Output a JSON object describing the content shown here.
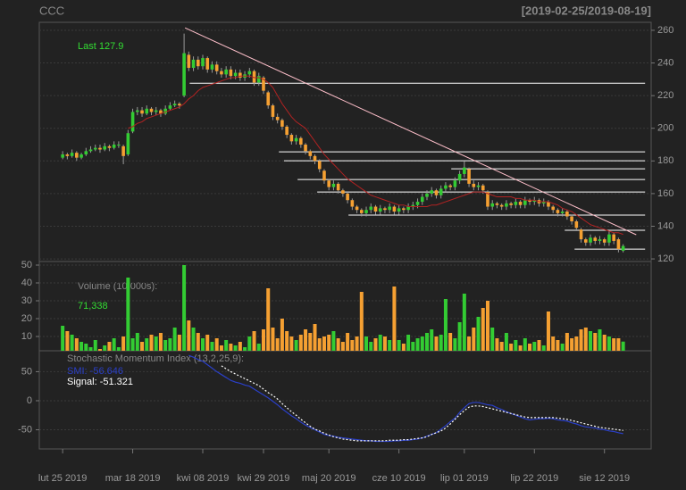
{
  "chart_data": {
    "type": "candlestick",
    "title": "CCC",
    "subtitle": "[2019-02-25/2019-08-19]",
    "last_label": "Last 127.9",
    "xlim": [
      -5,
      126
    ],
    "xticks": [
      {
        "value": 0,
        "label": "lut 25 2019"
      },
      {
        "value": 15,
        "label": "mar 18 2019"
      },
      {
        "value": 30,
        "label": "kwi 08 2019"
      },
      {
        "value": 43,
        "label": "kwi 29 2019"
      },
      {
        "value": 57,
        "label": "maj 20 2019"
      },
      {
        "value": 72,
        "label": "cze 10 2019"
      },
      {
        "value": 86,
        "label": "lip 01 2019"
      },
      {
        "value": 101,
        "label": "lip 22 2019"
      },
      {
        "value": 116,
        "label": "sie 12 2019"
      }
    ],
    "ylim": [
      118.4,
      264.9
    ],
    "yticks": [
      120,
      140,
      160,
      180,
      200,
      220,
      240,
      260
    ],
    "grid": true,
    "up_color": "#33cc33",
    "down_color": "#f5a032",
    "wick_color": "#999999",
    "open": [
      182,
      184,
      183,
      185,
      182,
      184,
      186,
      187,
      188,
      187,
      189,
      188,
      190,
      189,
      184,
      198,
      210,
      211,
      209,
      212,
      210,
      211,
      209,
      212,
      214,
      215,
      220,
      245,
      237,
      242,
      238,
      243,
      236,
      239,
      235,
      233,
      236,
      232,
      234,
      231,
      233,
      235,
      228,
      231,
      222,
      214,
      207,
      205,
      201,
      196,
      192,
      194,
      190,
      186,
      183,
      180,
      174,
      168,
      164,
      166,
      162,
      160,
      156,
      152,
      150,
      148,
      150,
      152,
      149,
      151,
      150,
      152,
      149,
      151,
      150,
      152,
      153,
      155,
      158,
      160,
      162,
      159,
      163,
      165,
      164,
      168,
      172,
      175,
      166,
      164,
      165,
      161,
      152,
      154,
      153,
      152,
      154,
      153,
      155,
      153,
      156,
      155,
      156,
      154,
      155,
      152,
      150,
      148,
      149,
      146,
      143,
      138,
      132,
      130,
      133,
      131,
      132,
      130,
      135,
      132,
      125
    ],
    "high": [
      186,
      185,
      187,
      186,
      185,
      188,
      189,
      190,
      190,
      191,
      190,
      192,
      192,
      190,
      199,
      212,
      213,
      213,
      214,
      213,
      213,
      212,
      214,
      216,
      217,
      216,
      258,
      247,
      244,
      244,
      245,
      244,
      241,
      241,
      237,
      238,
      238,
      236,
      236,
      235,
      237,
      236,
      234,
      232,
      223,
      215,
      209,
      206,
      202,
      197,
      196,
      195,
      191,
      187,
      184,
      181,
      175,
      169,
      168,
      167,
      163,
      161,
      157,
      153,
      151,
      152,
      154,
      153,
      153,
      152,
      154,
      153,
      153,
      152,
      154,
      155,
      157,
      160,
      162,
      164,
      163,
      165,
      167,
      166,
      170,
      174,
      180,
      176,
      168,
      167,
      166,
      162,
      156,
      155,
      154,
      156,
      155,
      157,
      156,
      158,
      157,
      158,
      157,
      157,
      156,
      153,
      151,
      151,
      150,
      147,
      144,
      139,
      133,
      135,
      134,
      134,
      133,
      137,
      136,
      133,
      129
    ],
    "low": [
      181,
      181,
      182,
      180,
      181,
      183,
      185,
      186,
      185,
      186,
      186,
      187,
      188,
      178,
      183,
      197,
      208,
      207,
      208,
      208,
      208,
      207,
      208,
      211,
      213,
      212,
      219,
      235,
      235,
      236,
      236,
      234,
      234,
      233,
      231,
      231,
      230,
      230,
      229,
      229,
      231,
      226,
      226,
      221,
      212,
      205,
      203,
      199,
      194,
      190,
      190,
      188,
      184,
      181,
      178,
      173,
      166,
      162,
      162,
      160,
      158,
      154,
      150,
      148,
      146,
      146,
      148,
      147,
      147,
      148,
      148,
      147,
      147,
      148,
      148,
      150,
      151,
      153,
      156,
      158,
      157,
      157,
      161,
      162,
      162,
      166,
      170,
      164,
      162,
      162,
      160,
      150,
      150,
      151,
      150,
      150,
      151,
      151,
      151,
      151,
      153,
      153,
      152,
      152,
      150,
      148,
      146,
      146,
      144,
      141,
      137,
      130,
      128,
      128,
      129,
      129,
      128,
      128,
      129,
      124,
      124
    ],
    "close": [
      184,
      183,
      185,
      182,
      184,
      186,
      187,
      188,
      187,
      189,
      188,
      190,
      190,
      183,
      197,
      210,
      211,
      209,
      212,
      210,
      211,
      209,
      212,
      214,
      215,
      214,
      246,
      237,
      242,
      238,
      243,
      236,
      239,
      235,
      233,
      236,
      232,
      234,
      231,
      233,
      235,
      228,
      232,
      223,
      214,
      207,
      205,
      201,
      196,
      192,
      194,
      190,
      186,
      183,
      180,
      175,
      168,
      164,
      166,
      162,
      160,
      156,
      152,
      150,
      148,
      150,
      152,
      149,
      151,
      150,
      152,
      149,
      151,
      150,
      152,
      153,
      155,
      158,
      160,
      162,
      159,
      163,
      165,
      164,
      168,
      172,
      176,
      166,
      164,
      165,
      162,
      152,
      154,
      153,
      152,
      154,
      153,
      155,
      153,
      156,
      155,
      156,
      154,
      155,
      152,
      150,
      148,
      149,
      146,
      143,
      139,
      132,
      130,
      133,
      131,
      132,
      130,
      135,
      131,
      126,
      127.9
    ],
    "overlay": {
      "color": "#b22222",
      "values": [
        null,
        null,
        null,
        null,
        null,
        null,
        null,
        null,
        null,
        null,
        null,
        null,
        null,
        null,
        200,
        201,
        203,
        204,
        206,
        207,
        208,
        209,
        210,
        211,
        212,
        213,
        215,
        218,
        220,
        223,
        225,
        226,
        227,
        228,
        229,
        230,
        231,
        231,
        232,
        232,
        232,
        231,
        231,
        230,
        228,
        225,
        220,
        215,
        211,
        207,
        204,
        202,
        200,
        196,
        192,
        188,
        184,
        181,
        178,
        175,
        172,
        169,
        167,
        165,
        163,
        161,
        159,
        158,
        157,
        156,
        155,
        154,
        153,
        153,
        152,
        152,
        152,
        152,
        152,
        153,
        153,
        154,
        155,
        156,
        157,
        158,
        159,
        160,
        161,
        161,
        161,
        160,
        159,
        158,
        158,
        158,
        158,
        157,
        157,
        156,
        156,
        156,
        155,
        155,
        155,
        154,
        153,
        151,
        150,
        149,
        147,
        145,
        143,
        141,
        140,
        139,
        138,
        137,
        136,
        136,
        135
      ]
    },
    "trendline": {
      "color": "#ffc0cb",
      "x": [
        26.2,
        122.8
      ],
      "y": [
        261.5,
        134.8
      ]
    },
    "level_color": "#ffffff",
    "levels": [
      {
        "value": 227.6,
        "from": 27.2,
        "to": 124.7
      },
      {
        "value": 185.6,
        "from": 46.3,
        "to": 124.7
      },
      {
        "value": 180.1,
        "from": 47.4,
        "to": 124.7
      },
      {
        "value": 175.2,
        "from": 83.2,
        "to": 124.7
      },
      {
        "value": 168.6,
        "from": 50.3,
        "to": 124.7
      },
      {
        "value": 161,
        "from": 54.5,
        "to": 124.7
      },
      {
        "value": 146.8,
        "from": 61.2,
        "to": 124.7
      },
      {
        "value": 137.5,
        "from": 107.5,
        "to": 124.7
      },
      {
        "value": 126,
        "from": 109.6,
        "to": 124.7
      }
    ],
    "volume": {
      "label": "Volume (10,000s):",
      "last_label": "71,338",
      "ylim": [
        2,
        52
      ],
      "yticks": [
        10,
        20,
        30,
        40,
        50
      ],
      "values": [
        16,
        13,
        11,
        9,
        7,
        6,
        4,
        8,
        3,
        5,
        7,
        9,
        4,
        10,
        43,
        9,
        12,
        7,
        9,
        11,
        10,
        12,
        8,
        9,
        15,
        11,
        50,
        19,
        15,
        12,
        9,
        11,
        7,
        9,
        5,
        8,
        6,
        5,
        7,
        4,
        10,
        13,
        6,
        14,
        37,
        15,
        9,
        20,
        13,
        10,
        8,
        11,
        14,
        12,
        17,
        9,
        10,
        11,
        13,
        9,
        7,
        12,
        8,
        10,
        35,
        10,
        7,
        9,
        11,
        10,
        8,
        38,
        8,
        6,
        11,
        7,
        9,
        10,
        12,
        14,
        10,
        11,
        31,
        12,
        9,
        18,
        34,
        10,
        15,
        21,
        26,
        30,
        15,
        9,
        7,
        12,
        6,
        8,
        5,
        9,
        6,
        7,
        8,
        5,
        24,
        10,
        8,
        6,
        12,
        9,
        10,
        14,
        15,
        13,
        12,
        14,
        11,
        10,
        9,
        9,
        7.1338
      ]
    },
    "smi": {
      "title": "Stochastic Momentum Index (13,2,25,9):",
      "ylim": [
        -83,
        86
      ],
      "yticks": [
        -50,
        0,
        50
      ],
      "series": [
        {
          "name": "SMI: -56.646",
          "color": "#2a3fc8",
          "values": [
            null,
            null,
            null,
            null,
            null,
            null,
            null,
            null,
            null,
            null,
            null,
            null,
            null,
            null,
            null,
            null,
            null,
            null,
            null,
            null,
            null,
            null,
            null,
            null,
            null,
            null,
            null,
            78,
            75,
            71,
            68,
            62,
            56,
            50,
            45,
            40,
            35,
            32,
            30,
            27,
            25,
            20,
            15,
            10,
            5,
            -1,
            -7,
            -14,
            -20,
            -26,
            -31,
            -37,
            -42,
            -46,
            -50,
            -54,
            -58,
            -60,
            -61,
            -63,
            -64,
            -65,
            -66,
            -67,
            -68,
            -69,
            -69,
            -70,
            -70,
            -70,
            -70,
            -69,
            -69,
            -68,
            -68,
            -67,
            -66,
            -64,
            -61,
            -58,
            -55,
            -49,
            -43,
            -36,
            -30,
            -20,
            -12,
            -5,
            -3,
            -3,
            -5,
            -7,
            -8,
            -12,
            -15,
            -19,
            -22,
            -25,
            -28,
            -31,
            -33,
            -32,
            -31,
            -31,
            -30,
            -31,
            -33,
            -34,
            -35,
            -38,
            -40,
            -43,
            -45,
            -46,
            -47,
            -49,
            -50,
            -52,
            -53,
            -55,
            -56.646
          ]
        },
        {
          "name": "Signal: -51.321",
          "color": "#ffffff",
          "dashed": true,
          "values": [
            null,
            null,
            null,
            null,
            null,
            null,
            null,
            null,
            null,
            null,
            null,
            null,
            null,
            null,
            null,
            null,
            null,
            null,
            null,
            null,
            null,
            null,
            null,
            null,
            null,
            null,
            null,
            null,
            null,
            null,
            null,
            null,
            null,
            null,
            60,
            55,
            50,
            46,
            42,
            38,
            34,
            30,
            26,
            20,
            14,
            9,
            3,
            -5,
            -12,
            -19,
            -25,
            -32,
            -38,
            -44,
            -49,
            -52,
            -56,
            -59,
            -62,
            -64,
            -66,
            -67,
            -68,
            -69,
            -69,
            -69,
            -69,
            -69,
            -69,
            -69,
            -68,
            -68,
            -68,
            -67,
            -67,
            -66,
            -65,
            -64,
            -62,
            -58,
            -55,
            -52,
            -47,
            -40,
            -32,
            -24,
            -17,
            -11,
            -9,
            -9,
            -10,
            -12,
            -14,
            -16,
            -18,
            -20,
            -22,
            -24,
            -26,
            -28,
            -29,
            -29,
            -29,
            -29,
            -29,
            -29,
            -30,
            -31,
            -32,
            -34,
            -36,
            -38,
            -40,
            -42,
            -44,
            -46,
            -47,
            -48,
            -49,
            -50,
            -51.321
          ]
        }
      ]
    }
  }
}
